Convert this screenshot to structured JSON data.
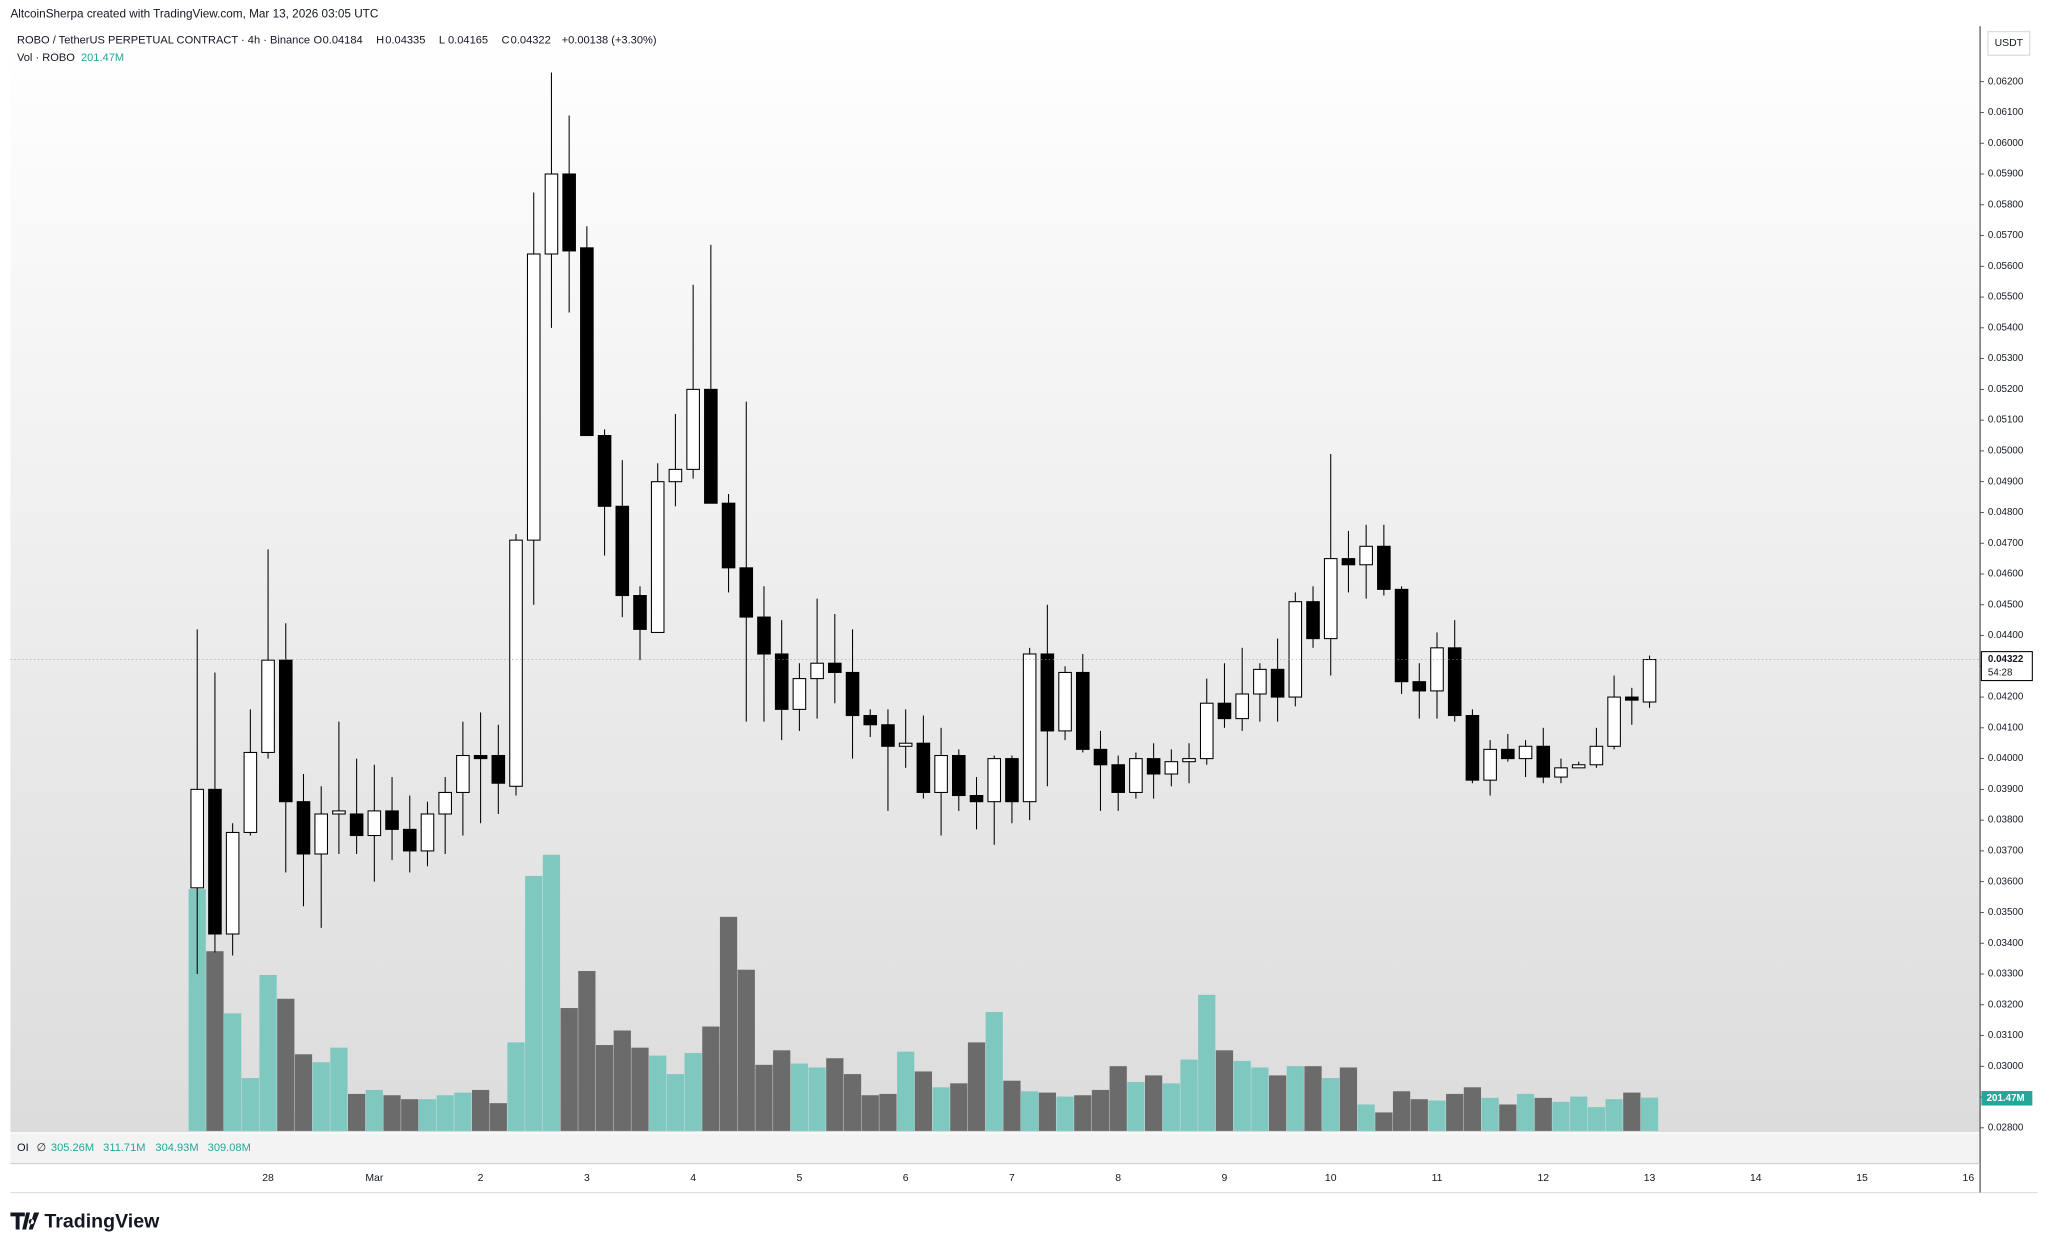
{
  "chart_data": {
    "type": "candlestick",
    "header": "AltcoinSherpa created with TradingView.com, Mar 13, 2026 03:05 UTC",
    "title": "ROBO / TetherUS PERPETUAL CONTRACT · 4h · Binance",
    "legend_labels": [
      "O",
      "H",
      "L",
      "C"
    ],
    "change_text": "+0.00138 (+3.30%)",
    "volume_label": "Vol · ROBO",
    "last_volume_label": "201.47M",
    "countdown": "54:28",
    "price_unit": "USDT",
    "oi_label": "OI",
    "oi_symbol": "∅",
    "oi_values": [
      "305.26M",
      "311.71M",
      "304.93M",
      "309.08M"
    ],
    "logo": "TradingView",
    "up_color": "#ffffff",
    "down_color": "#000000",
    "up_volume_color": "#7fc8c0",
    "down_volume_color": "#6b6b6b",
    "x_labels": [
      "28",
      "Mar",
      "2",
      "3",
      "4",
      "5",
      "6",
      "7",
      "8",
      "9",
      "10",
      "11",
      "12",
      "13",
      "14",
      "15",
      "16"
    ],
    "open": [
      0.0358,
      0.039,
      0.0343,
      0.0376,
      0.0402,
      0.0432,
      0.0386,
      0.0369,
      0.0382,
      0.0382,
      0.0375,
      0.0383,
      0.0377,
      0.037,
      0.0382,
      0.0389,
      0.0401,
      0.0401,
      0.0391,
      0.0471,
      0.0564,
      0.059,
      0.0566,
      0.0505,
      0.0482,
      0.0453,
      0.0441,
      0.049,
      0.0494,
      0.052,
      0.0483,
      0.0462,
      0.0446,
      0.0434,
      0.0416,
      0.0426,
      0.0431,
      0.0428,
      0.0414,
      0.0411,
      0.0404,
      0.0405,
      0.0389,
      0.0401,
      0.0388,
      0.0386,
      0.04,
      0.0386,
      0.0434,
      0.0409,
      0.0428,
      0.0403,
      0.0398,
      0.0389,
      0.04,
      0.0395,
      0.0399,
      0.04,
      0.0418,
      0.0413,
      0.0421,
      0.0429,
      0.042,
      0.0451,
      0.0439,
      0.0465,
      0.0463,
      0.0469,
      0.0455,
      0.0425,
      0.0422,
      0.0436,
      0.0414,
      0.0393,
      0.0403,
      0.04,
      0.0404,
      0.0394,
      0.0397,
      0.0398,
      0.0404,
      0.042,
      0.04184
    ],
    "high": [
      0.0442,
      0.0428,
      0.0379,
      0.0416,
      0.0468,
      0.0444,
      0.0395,
      0.0391,
      0.0412,
      0.04,
      0.0398,
      0.0394,
      0.0388,
      0.0386,
      0.0394,
      0.0412,
      0.0415,
      0.0411,
      0.0473,
      0.0584,
      0.0623,
      0.0609,
      0.0573,
      0.0507,
      0.0497,
      0.0456,
      0.0496,
      0.0512,
      0.0554,
      0.0567,
      0.0486,
      0.0516,
      0.0456,
      0.0445,
      0.0431,
      0.0452,
      0.0447,
      0.0442,
      0.0416,
      0.0416,
      0.0416,
      0.0414,
      0.041,
      0.0403,
      0.0394,
      0.0401,
      0.0401,
      0.0436,
      0.045,
      0.043,
      0.0434,
      0.0409,
      0.0401,
      0.0402,
      0.0405,
      0.0403,
      0.0405,
      0.0426,
      0.0431,
      0.0436,
      0.0431,
      0.0439,
      0.0454,
      0.0456,
      0.0499,
      0.0474,
      0.0476,
      0.0476,
      0.0456,
      0.0431,
      0.0441,
      0.0445,
      0.0416,
      0.0406,
      0.0408,
      0.0406,
      0.041,
      0.04,
      0.0399,
      0.041,
      0.0427,
      0.0423,
      0.04335
    ],
    "low": [
      0.033,
      0.0337,
      0.0336,
      0.0375,
      0.04,
      0.0363,
      0.0352,
      0.0345,
      0.0369,
      0.0369,
      0.036,
      0.0367,
      0.0363,
      0.0365,
      0.0369,
      0.0375,
      0.0379,
      0.0382,
      0.0388,
      0.045,
      0.054,
      0.0545,
      0.0505,
      0.0466,
      0.0446,
      0.0432,
      0.0441,
      0.0482,
      0.0491,
      0.0483,
      0.0454,
      0.0412,
      0.0412,
      0.0406,
      0.0409,
      0.0413,
      0.0418,
      0.04,
      0.0407,
      0.0383,
      0.0397,
      0.0387,
      0.0375,
      0.0383,
      0.0377,
      0.0372,
      0.0379,
      0.038,
      0.0391,
      0.0406,
      0.0402,
      0.0383,
      0.0383,
      0.0387,
      0.0387,
      0.0391,
      0.0392,
      0.0398,
      0.041,
      0.0409,
      0.0412,
      0.0412,
      0.0417,
      0.0436,
      0.0427,
      0.0454,
      0.0452,
      0.0453,
      0.0421,
      0.0413,
      0.0413,
      0.0412,
      0.0392,
      0.0388,
      0.0399,
      0.0394,
      0.0392,
      0.0392,
      0.0397,
      0.0397,
      0.0403,
      0.0411,
      0.04165
    ],
    "close": [
      0.039,
      0.0343,
      0.0376,
      0.0402,
      0.0432,
      0.0386,
      0.0369,
      0.0382,
      0.0383,
      0.0375,
      0.0383,
      0.0377,
      0.037,
      0.0382,
      0.0389,
      0.0401,
      0.04,
      0.0392,
      0.0471,
      0.0564,
      0.059,
      0.0565,
      0.0505,
      0.0482,
      0.0453,
      0.0442,
      0.049,
      0.0494,
      0.052,
      0.0483,
      0.0462,
      0.0446,
      0.0434,
      0.0416,
      0.0426,
      0.0431,
      0.0428,
      0.0414,
      0.0411,
      0.0404,
      0.0405,
      0.0389,
      0.0401,
      0.0388,
      0.0386,
      0.04,
      0.0386,
      0.0434,
      0.0409,
      0.0428,
      0.0403,
      0.0398,
      0.0389,
      0.04,
      0.0395,
      0.0399,
      0.04,
      0.0418,
      0.0413,
      0.0421,
      0.0429,
      0.042,
      0.0451,
      0.0439,
      0.0465,
      0.0463,
      0.0469,
      0.0455,
      0.0425,
      0.0422,
      0.0436,
      0.0414,
      0.0393,
      0.0403,
      0.04,
      0.0404,
      0.0394,
      0.0397,
      0.0398,
      0.0404,
      0.042,
      0.0419,
      0.04322
    ],
    "volume": [
      1464000000.0,
      1088000000.0,
      712000000.0,
      320000000.0,
      944000000.0,
      800000000.0,
      464000000.0,
      416000000.0,
      504000000.0,
      224000000.0,
      248000000.0,
      216000000.0,
      192000000.0,
      192000000.0,
      216000000.0,
      232000000.0,
      248000000.0,
      168000000.0,
      536000000.0,
      1544000000.0,
      1672000000.0,
      744000000.0,
      968000000.0,
      520000000.0,
      608000000.0,
      504000000.0,
      456000000.0,
      344000000.0,
      472000000.0,
      632000000.0,
      1296000000.0,
      976000000.0,
      400000000.0,
      488000000.0,
      408000000.0,
      384000000.0,
      440000000.0,
      344000000.0,
      216000000.0,
      224000000.0,
      480000000.0,
      360000000.0,
      264000000.0,
      288000000.0,
      536000000.0,
      720000000.0,
      304000000.0,
      240000000.0,
      232000000.0,
      208000000.0,
      216000000.0,
      248000000.0,
      392000000.0,
      296000000.0,
      336000000.0,
      288000000.0,
      432000000.0,
      824000000.0,
      488000000.0,
      424000000.0,
      384000000.0,
      336000000.0,
      392000000.0,
      392000000.0,
      320000000.0,
      384000000.0,
      160000000.0,
      112000000.0,
      240000000.0,
      192000000.0,
      184000000.0,
      224000000.0,
      264000000.0,
      200000000.0,
      160000000.0,
      224000000.0,
      200000000.0,
      176000000.0,
      208000000.0,
      144000000.0,
      192000000.0,
      232000000.0,
      201470000.0
    ],
    "ylim": [
      0.0279,
      0.0638
    ],
    "yticks": [
      {
        "value": 0.062,
        "label": "0.06200"
      },
      {
        "value": 0.061,
        "label": "0.06100"
      },
      {
        "value": 0.06,
        "label": "0.06000"
      },
      {
        "value": 0.059,
        "label": "0.05900"
      },
      {
        "value": 0.058,
        "label": "0.05800"
      },
      {
        "value": 0.057,
        "label": "0.05700"
      },
      {
        "value": 0.056,
        "label": "0.05600"
      },
      {
        "value": 0.055,
        "label": "0.05500"
      },
      {
        "value": 0.054,
        "label": "0.05400"
      },
      {
        "value": 0.053,
        "label": "0.05300"
      },
      {
        "value": 0.052,
        "label": "0.05200"
      },
      {
        "value": 0.051,
        "label": "0.05100"
      },
      {
        "value": 0.05,
        "label": "0.05000"
      },
      {
        "value": 0.049,
        "label": "0.04900"
      },
      {
        "value": 0.048,
        "label": "0.04800"
      },
      {
        "value": 0.047,
        "label": "0.04700"
      },
      {
        "value": 0.046,
        "label": "0.04600"
      },
      {
        "value": 0.045,
        "label": "0.04500"
      },
      {
        "value": 0.044,
        "label": "0.04400"
      },
      {
        "value": 0.043,
        "label": "0.04300"
      },
      {
        "value": 0.042,
        "label": "0.04200"
      },
      {
        "value": 0.041,
        "label": "0.04100"
      },
      {
        "value": 0.04,
        "label": "0.04000"
      },
      {
        "value": 0.039,
        "label": "0.03900"
      },
      {
        "value": 0.038,
        "label": "0.03800"
      },
      {
        "value": 0.037,
        "label": "0.03700"
      },
      {
        "value": 0.036,
        "label": "0.03600"
      },
      {
        "value": 0.035,
        "label": "0.03500"
      },
      {
        "value": 0.034,
        "label": "0.03400"
      },
      {
        "value": 0.033,
        "label": "0.03300"
      },
      {
        "value": 0.032,
        "label": "0.03200"
      },
      {
        "value": 0.031,
        "label": "0.03100"
      },
      {
        "value": 0.03,
        "label": "0.03000"
      },
      {
        "value": 0.029,
        "label": "0.02900"
      },
      {
        "value": 0.028,
        "label": "0.02800"
      }
    ],
    "grid": false
  }
}
